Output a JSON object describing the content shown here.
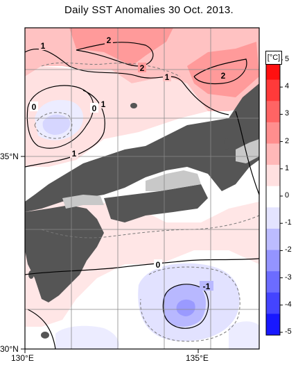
{
  "title": "Daily SST Anomalies 30 Oct. 2013.",
  "axes": {
    "lon_labels": [
      "130°E",
      "135°E"
    ],
    "lat_labels": [
      "35°N",
      "30°N"
    ]
  },
  "colorbar": {
    "unit": "[°C]",
    "ticks": [
      "5",
      "4",
      "3",
      "2",
      "1",
      "0",
      "-1",
      "-2",
      "-3",
      "-4",
      "-5"
    ],
    "colors": [
      "#ff1010",
      "#ff3a3a",
      "#ff6464",
      "#ff8e8e",
      "#ffb8b8",
      "#ffe0e0",
      "#ffffff",
      "#e4e4ff",
      "#bcbcff",
      "#9494ff",
      "#6c6cff",
      "#4444ff",
      "#1818ff"
    ]
  },
  "contour_labels": [
    "1",
    "2",
    "2",
    "1",
    "2",
    "0",
    "0",
    "1",
    "1",
    "0",
    "-1"
  ],
  "colors": {
    "land": "#555555",
    "land_gray": "#c8c8c8",
    "grid": "#888888"
  }
}
